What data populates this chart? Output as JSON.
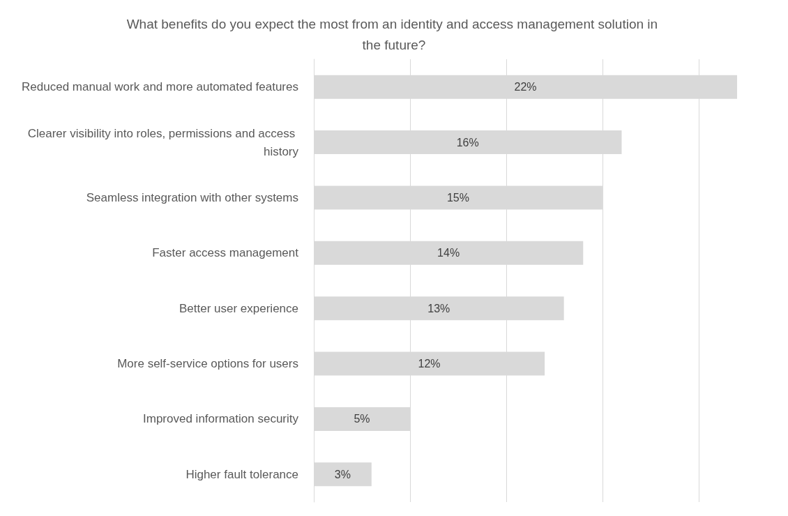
{
  "chart_data": {
    "type": "bar",
    "orientation": "horizontal",
    "title": "What benefits do you expect the most from an identity and access management solution in the future?",
    "categories": [
      "Reduced manual work and more automated features",
      "Clearer visibility into roles, permissions and access history",
      "Seamless integration with other systems",
      "Faster access management",
      "Better user experience",
      "More self-service options for users",
      "Improved information security",
      "Higher fault tolerance"
    ],
    "values": [
      22,
      16,
      15,
      14,
      13,
      12,
      5,
      3
    ],
    "value_labels": [
      "22%",
      "16%",
      "15%",
      "14%",
      "13%",
      "12%",
      "5%",
      "3%"
    ],
    "color": "#d9d9d9",
    "xlim": [
      0,
      22
    ],
    "xticks": [
      {
        "value": 0,
        "label": null
      },
      {
        "value": 5,
        "label": null
      },
      {
        "value": 10,
        "label": null
      },
      {
        "value": 15,
        "label": null
      },
      {
        "value": 20,
        "label": null
      }
    ],
    "grid": "x",
    "tick_labels": "y"
  }
}
